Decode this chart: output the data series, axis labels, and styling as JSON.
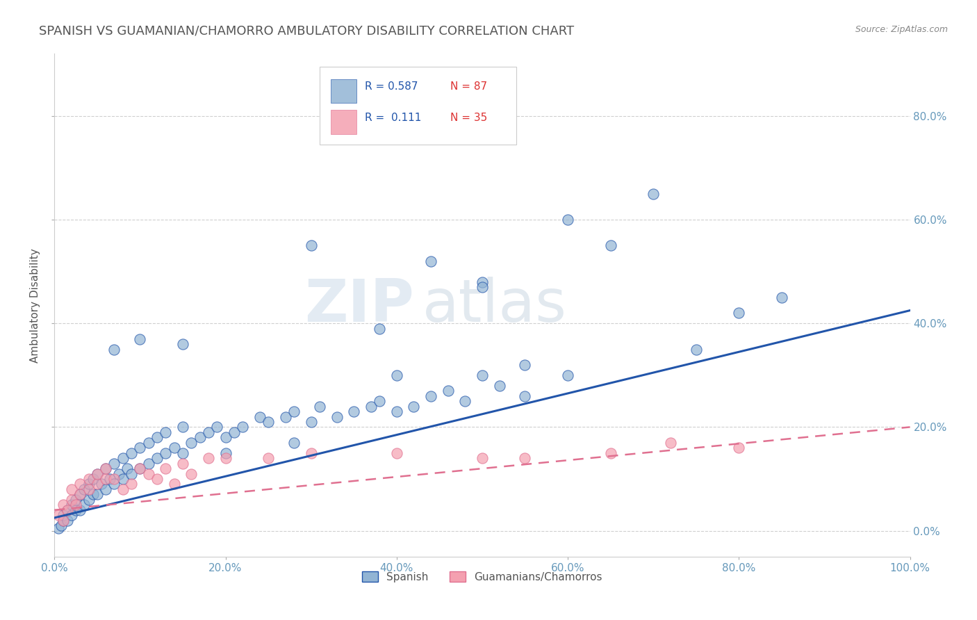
{
  "title": "SPANISH VS GUAMANIAN/CHAMORRO AMBULATORY DISABILITY CORRELATION CHART",
  "source_text": "Source: ZipAtlas.com",
  "ylabel": "Ambulatory Disability",
  "right_ytick_labels": [
    "0.0%",
    "20.0%",
    "40.0%",
    "60.0%",
    "80.0%"
  ],
  "right_ytick_values": [
    0.0,
    0.2,
    0.4,
    0.6,
    0.8
  ],
  "xlim": [
    0.0,
    1.0
  ],
  "ylim": [
    -0.05,
    0.92
  ],
  "xtick_labels": [
    "0.0%",
    "",
    "20.0%",
    "",
    "40.0%",
    "",
    "60.0%",
    "",
    "80.0%",
    "",
    "100.0%"
  ],
  "xtick_values": [
    0.0,
    0.1,
    0.2,
    0.3,
    0.4,
    0.5,
    0.6,
    0.7,
    0.8,
    0.9,
    1.0
  ],
  "blue_color": "#92B4D4",
  "pink_color": "#F4A0B0",
  "blue_line_color": "#2255AA",
  "pink_line_color": "#E07090",
  "grid_color": "#BBBBBB",
  "background_color": "#FFFFFF",
  "title_color": "#555555",
  "axis_color": "#6699BB",
  "legend_label1": "Spanish",
  "legend_label2": "Guamanians/Chamorros",
  "watermark_zip": "ZIP",
  "watermark_atlas": "atlas",
  "blue_scatter_x": [
    0.005,
    0.008,
    0.01,
    0.01,
    0.015,
    0.015,
    0.02,
    0.02,
    0.025,
    0.025,
    0.03,
    0.03,
    0.035,
    0.035,
    0.04,
    0.04,
    0.045,
    0.045,
    0.05,
    0.05,
    0.055,
    0.06,
    0.06,
    0.065,
    0.07,
    0.07,
    0.075,
    0.08,
    0.08,
    0.085,
    0.09,
    0.09,
    0.1,
    0.1,
    0.11,
    0.11,
    0.12,
    0.12,
    0.13,
    0.13,
    0.14,
    0.15,
    0.15,
    0.16,
    0.17,
    0.18,
    0.19,
    0.2,
    0.21,
    0.22,
    0.24,
    0.25,
    0.27,
    0.28,
    0.3,
    0.31,
    0.33,
    0.35,
    0.37,
    0.38,
    0.4,
    0.42,
    0.44,
    0.46,
    0.48,
    0.5,
    0.52,
    0.5,
    0.55,
    0.6,
    0.65,
    0.7,
    0.75,
    0.8,
    0.85,
    0.5,
    0.44,
    0.38,
    0.28,
    0.2,
    0.15,
    0.1,
    0.07,
    0.3,
    0.4,
    0.6,
    0.55
  ],
  "blue_scatter_y": [
    0.005,
    0.01,
    0.02,
    0.03,
    0.02,
    0.04,
    0.03,
    0.05,
    0.04,
    0.06,
    0.04,
    0.07,
    0.05,
    0.08,
    0.06,
    0.09,
    0.07,
    0.1,
    0.07,
    0.11,
    0.09,
    0.08,
    0.12,
    0.1,
    0.09,
    0.13,
    0.11,
    0.1,
    0.14,
    0.12,
    0.11,
    0.15,
    0.12,
    0.16,
    0.13,
    0.17,
    0.14,
    0.18,
    0.15,
    0.19,
    0.16,
    0.15,
    0.2,
    0.17,
    0.18,
    0.19,
    0.2,
    0.18,
    0.19,
    0.2,
    0.22,
    0.21,
    0.22,
    0.23,
    0.21,
    0.24,
    0.22,
    0.23,
    0.24,
    0.25,
    0.23,
    0.24,
    0.26,
    0.27,
    0.25,
    0.3,
    0.28,
    0.48,
    0.26,
    0.3,
    0.55,
    0.65,
    0.35,
    0.42,
    0.45,
    0.47,
    0.52,
    0.39,
    0.17,
    0.15,
    0.36,
    0.37,
    0.35,
    0.55,
    0.3,
    0.6,
    0.32
  ],
  "pink_scatter_x": [
    0.005,
    0.01,
    0.01,
    0.015,
    0.02,
    0.02,
    0.025,
    0.03,
    0.03,
    0.04,
    0.04,
    0.05,
    0.05,
    0.06,
    0.06,
    0.07,
    0.08,
    0.09,
    0.1,
    0.11,
    0.12,
    0.13,
    0.14,
    0.15,
    0.16,
    0.18,
    0.2,
    0.25,
    0.3,
    0.4,
    0.5,
    0.55,
    0.65,
    0.72,
    0.8
  ],
  "pink_scatter_y": [
    0.03,
    0.02,
    0.05,
    0.04,
    0.06,
    0.08,
    0.05,
    0.07,
    0.09,
    0.08,
    0.1,
    0.09,
    0.11,
    0.1,
    0.12,
    0.1,
    0.08,
    0.09,
    0.12,
    0.11,
    0.1,
    0.12,
    0.09,
    0.13,
    0.11,
    0.14,
    0.14,
    0.14,
    0.15,
    0.15,
    0.14,
    0.14,
    0.15,
    0.17,
    0.16
  ],
  "blue_trend_x": [
    0.0,
    1.0
  ],
  "blue_trend_y": [
    0.025,
    0.425
  ],
  "pink_trend_x": [
    0.0,
    1.0
  ],
  "pink_trend_y": [
    0.04,
    0.2
  ]
}
